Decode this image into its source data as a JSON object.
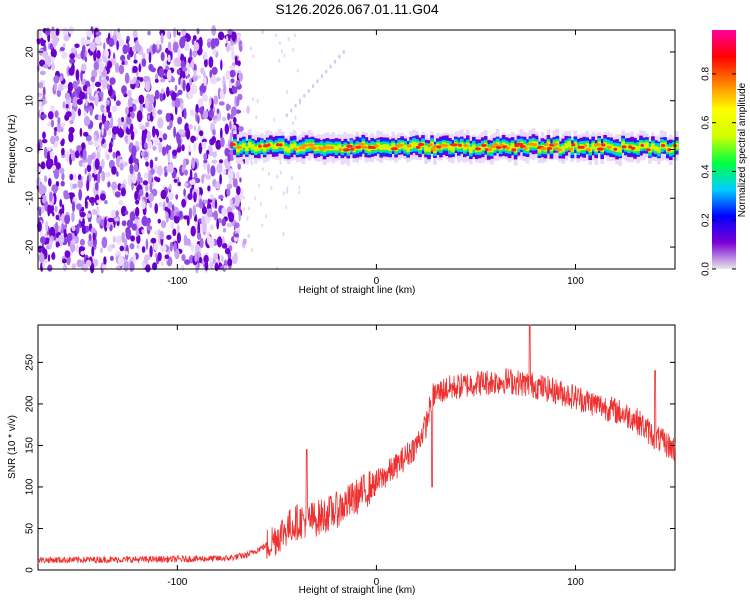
{
  "title": "S126.2026.067.01.11.G04",
  "chart_data": [
    {
      "type": "heatmap",
      "xlabel": "Height of straight line (km)",
      "ylabel": "Frequency (Hz)",
      "xlim": [
        -170,
        150
      ],
      "ylim": [
        -24.5,
        24.5
      ],
      "xticks": [
        -100,
        0,
        100
      ],
      "xtick_labels": [
        "-100",
        "0",
        "100"
      ],
      "yticks": [
        -20,
        -10,
        0,
        10,
        20
      ],
      "ytick_labels": [
        "-20",
        "-10",
        "0",
        "10",
        "20"
      ],
      "noise_region_x": [
        -170,
        -68
      ],
      "signal_band": {
        "x_start": -72,
        "x_end": 150,
        "freq_center": 0.5,
        "freq_halfwidth": 1.5
      },
      "colorbar": {
        "label": "Normalized spectral amplitude",
        "range": [
          0.0,
          0.98
        ],
        "ticks": [
          0.0,
          0.2,
          0.4,
          0.6,
          0.8
        ],
        "tick_labels": [
          "0.0",
          "0.2",
          "0.4",
          "0.6",
          "0.8"
        ],
        "colors": [
          "#e8e8e8",
          "#7b00d6",
          "#0000ff",
          "#00d0ff",
          "#00ff40",
          "#d0ff00",
          "#ffff00",
          "#ff8000",
          "#ff0000",
          "#ff00a0"
        ]
      }
    },
    {
      "type": "line",
      "xlabel": "Height of straight line (km)",
      "ylabel": "SNR (10 * v/v)",
      "xlim": [
        -170,
        150
      ],
      "ylim": [
        0,
        295
      ],
      "xticks": [
        -100,
        0,
        100
      ],
      "xtick_labels": [
        "-100",
        "0",
        "100"
      ],
      "yticks": [
        0,
        50,
        100,
        150,
        200,
        250
      ],
      "ytick_labels": [
        "0",
        "50",
        "100",
        "150",
        "200",
        "250"
      ],
      "color": "#ef3030",
      "trend_x": [
        -170,
        -100,
        -75,
        -65,
        -55,
        -45,
        -40,
        -30,
        -20,
        -10,
        0,
        10,
        20,
        25,
        28,
        35,
        50,
        65,
        80,
        95,
        110,
        120,
        130,
        140,
        150
      ],
      "trend_y": [
        12,
        13,
        14,
        18,
        30,
        50,
        58,
        62,
        72,
        88,
        105,
        125,
        150,
        175,
        210,
        218,
        225,
        228,
        222,
        212,
        200,
        192,
        182,
        160,
        145
      ],
      "spikes_x": [
        -35,
        28,
        77,
        140
      ],
      "spikes_y": [
        145,
        100,
        295,
        240
      ]
    }
  ]
}
